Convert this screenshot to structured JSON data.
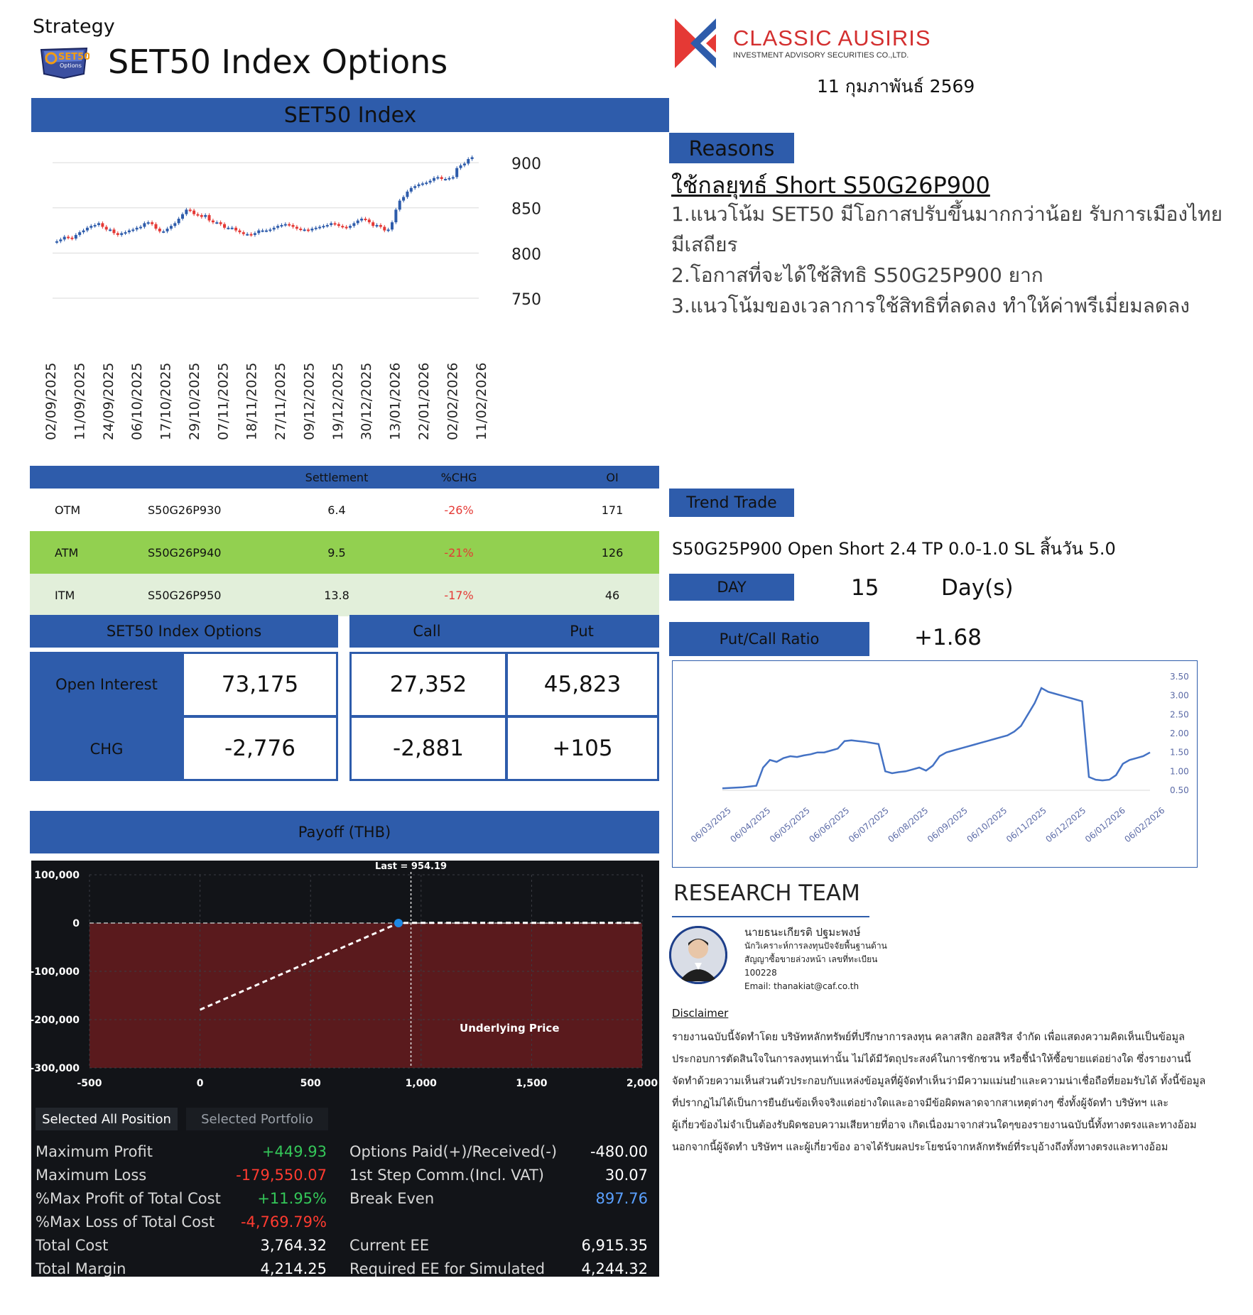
{
  "header": {
    "strategy_label": "Strategy",
    "badge_text": "SET50",
    "badge_sub": "Options",
    "title": "SET50 Index Options",
    "brand_name": "CLASSIC AUSIRIS",
    "brand_sub": "INVESTMENT ADVISORY SECURITIES CO.,LTD.",
    "date": "11 กุมภาพันธ์ 2569"
  },
  "index_chart_header": "SET50 Index",
  "chart_data": [
    {
      "type": "candlestick",
      "title": "SET50 Index",
      "x_ticks": [
        "02/09/2025",
        "11/09/2025",
        "24/09/2025",
        "06/10/2025",
        "17/10/2025",
        "29/10/2025",
        "07/11/2025",
        "18/11/2025",
        "27/11/2025",
        "09/12/2025",
        "19/12/2025",
        "30/12/2025",
        "13/01/2026",
        "22/01/2026",
        "02/02/2026",
        "11/02/2026"
      ],
      "y_ticks": [
        900,
        850,
        800,
        750
      ],
      "ylim": [
        750,
        915
      ],
      "grid": true,
      "up_color": "#2e5cab",
      "down_color": "#e53935",
      "close": [
        813,
        815,
        818,
        817,
        816,
        820,
        823,
        825,
        828,
        830,
        831,
        833,
        829,
        826,
        826,
        822,
        820,
        822,
        823,
        825,
        826,
        828,
        829,
        833,
        834,
        832,
        827,
        824,
        824,
        827,
        830,
        833,
        838,
        843,
        848,
        847,
        843,
        842,
        840,
        842,
        836,
        834,
        834,
        832,
        828,
        828,
        828,
        825,
        823,
        821,
        821,
        820,
        822,
        825,
        825,
        825,
        826,
        828,
        830,
        831,
        832,
        831,
        829,
        827,
        826,
        826,
        825,
        827,
        828,
        829,
        830,
        831,
        833,
        832,
        830,
        829,
        828,
        830,
        833,
        836,
        838,
        837,
        834,
        830,
        831,
        829,
        825,
        826,
        834,
        848,
        858,
        862,
        868,
        872,
        874,
        876,
        877,
        878,
        880,
        883,
        884,
        882,
        882,
        883,
        884,
        894,
        897,
        899,
        904,
        906
      ],
      "open": [
        812,
        813,
        815,
        818,
        817,
        816,
        820,
        823,
        825,
        828,
        830,
        831,
        833,
        829,
        826,
        826,
        822,
        820,
        822,
        823,
        825,
        826,
        828,
        829,
        833,
        834,
        832,
        827,
        824,
        824,
        827,
        830,
        833,
        838,
        843,
        848,
        847,
        843,
        842,
        840,
        842,
        836,
        834,
        834,
        832,
        828,
        828,
        828,
        825,
        823,
        821,
        821,
        820,
        822,
        825,
        825,
        825,
        826,
        828,
        830,
        831,
        832,
        831,
        829,
        827,
        826,
        826,
        825,
        827,
        828,
        829,
        830,
        831,
        833,
        832,
        830,
        829,
        828,
        830,
        833,
        836,
        838,
        837,
        834,
        830,
        831,
        829,
        825,
        826,
        834,
        848,
        858,
        862,
        868,
        872,
        874,
        876,
        877,
        878,
        880,
        883,
        884,
        882,
        882,
        883,
        884,
        894,
        897,
        899,
        904
      ]
    },
    {
      "type": "line",
      "title": "Put/Call Ratio",
      "x_ticks": [
        "06/03/2025",
        "06/04/2025",
        "06/05/2025",
        "06/06/2025",
        "06/07/2025",
        "06/08/2025",
        "06/09/2025",
        "06/10/2025",
        "06/11/2025",
        "06/12/2025",
        "06/01/2026",
        "06/02/2026"
      ],
      "y_ticks": [
        "3.50",
        "3.00",
        "2.50",
        "2.00",
        "1.50",
        "1.00",
        "0.50"
      ],
      "ylim": [
        0.5,
        3.5
      ],
      "color": "#4472c4",
      "values": [
        0.55,
        0.56,
        0.57,
        0.58,
        0.6,
        0.62,
        1.1,
        1.3,
        1.25,
        1.35,
        1.4,
        1.38,
        1.42,
        1.45,
        1.5,
        1.5,
        1.55,
        1.6,
        1.8,
        1.82,
        1.8,
        1.78,
        1.75,
        1.72,
        1.0,
        0.95,
        0.98,
        1.0,
        1.05,
        1.1,
        1.02,
        1.15,
        1.4,
        1.5,
        1.55,
        1.6,
        1.65,
        1.7,
        1.75,
        1.8,
        1.85,
        1.9,
        1.95,
        2.05,
        2.2,
        2.5,
        2.8,
        3.2,
        3.1,
        3.05,
        3.0,
        2.95,
        2.9,
        2.85,
        0.85,
        0.78,
        0.76,
        0.78,
        0.9,
        1.2,
        1.3,
        1.35,
        1.4,
        1.5
      ]
    },
    {
      "type": "line",
      "title": "Payoff (THB)",
      "xlabel": "Underlying Price",
      "x_ticks": [
        "-500",
        "0",
        "500",
        "1,000",
        "1,500",
        "2,000"
      ],
      "y_ticks": [
        "100,000",
        "0",
        "-100,000",
        "-200,000",
        "-300,000"
      ],
      "xlim": [
        -500,
        2000
      ],
      "ylim": [
        -300000,
        100000
      ],
      "marker_label": "Last = 954.19",
      "marker_x": 954.19,
      "x": [
        0,
        897.76,
        954.19,
        2000
      ],
      "y": [
        -179550,
        0,
        449.93,
        449.93
      ]
    }
  ],
  "reasons": {
    "header": "Reasons",
    "title": "ใช้กลยุทธ์ Short S50G26P900",
    "lines": [
      "1.แนวโน้ม SET50 มีโอกาสปรับขึ้นมากกว่าน้อย รับการเมืองไทยมีเสถียร",
      "2.โอกาสที่จะได้ใช้สิทธิ S50G25P900 ยาก",
      "3.แนวโน้มของเวลาการใช้สิทธิที่ลดลง ทำให้ค่าพรีเมี่ยมลดลง"
    ]
  },
  "options_table": {
    "headers": [
      "",
      "",
      "Settlement",
      "%CHG",
      "OI"
    ],
    "rows": [
      {
        "type": "OTM",
        "series": "S50G26P930",
        "settlement": "6.4",
        "chg": "-26%",
        "oi": "171",
        "bg": "#ffffff"
      },
      {
        "type": "ATM",
        "series": "S50G26P940",
        "settlement": "9.5",
        "chg": "-21%",
        "oi": "126",
        "bg": "#92d050"
      },
      {
        "type": "ITM",
        "series": "S50G26P950",
        "settlement": "13.8",
        "chg": "-17%",
        "oi": "46",
        "bg": "#e2efda"
      }
    ]
  },
  "trend": {
    "header": "Trend Trade",
    "text": "S50G25P900 Open Short 2.4 TP 0.0-1.0 SL สิ้นวัน 5.0",
    "day_label": "DAY",
    "day_value": "15",
    "day_unit": "Day(s)",
    "pcr_label": "Put/Call Ratio",
    "pcr_value": "+1.68"
  },
  "summary": {
    "header": "SET50 Index Options",
    "call_label": "Call",
    "put_label": "Put",
    "oi_label": "Open Interest",
    "chg_label": "CHG",
    "oi_total": "73,175",
    "chg_total": "-2,776",
    "oi_call": "27,352",
    "oi_put": "45,823",
    "chg_call": "-2,881",
    "chg_put": "+105"
  },
  "payoff": {
    "header": "Payoff (THB)",
    "tab_all": "Selected All Position",
    "tab_portfolio": "Selected Portfolio",
    "left_stats": [
      {
        "label": "Maximum Profit",
        "value": "+449.93",
        "color": "#34c759"
      },
      {
        "label": "Maximum Loss",
        "value": "-179,550.07",
        "color": "#ff3b30"
      },
      {
        "label": "%Max Profit of Total Cost",
        "value": "+11.95%",
        "color": "#34c759"
      },
      {
        "label": "%Max Loss of Total Cost",
        "value": "-4,769.79%",
        "color": "#ff3b30"
      },
      {
        "label": "Total Cost",
        "value": "3,764.32",
        "color": "#ffffff"
      },
      {
        "label": "Total Margin",
        "value": "4,214.25",
        "color": "#ffffff"
      }
    ],
    "right_stats": [
      {
        "label": "Options Paid(+)/Received(-)",
        "value": "-480.00",
        "color": "#ffffff"
      },
      {
        "label": "1st Step Comm.(Incl. VAT)",
        "value": "30.07",
        "color": "#ffffff"
      },
      {
        "label": "Break Even",
        "value": "897.76",
        "color": "#5aa0ff"
      },
      {
        "label": "",
        "value": "",
        "color": "#ffffff"
      },
      {
        "label": "Current EE",
        "value": "6,915.35",
        "color": "#ffffff"
      },
      {
        "label": "Required EE for Simulated",
        "value": "4,244.32",
        "color": "#ffffff"
      }
    ]
  },
  "research": {
    "title": "RESEARCH TEAM",
    "name": "นายธนะเกียรติ ปฐมะพงษ์",
    "role_line1": "นักวิเคราะห์การลงทุนปัจจัยพื้นฐานด้าน",
    "role_line2": "สัญญาซื้อขายล่วงหน้า เลขที่ทะเบียน",
    "license": "100228",
    "email": "Email: thanakiat@caf.co.th",
    "disclaimer_title": "Disclaimer",
    "disclaimer_lines": [
      "รายงานฉบับนี้จัดทำโดย บริษัทหลักทรัพย์ที่ปรึกษาการลงทุน คลาสสิก ออสสิริส จำกัด เพื่อแสดงความคิดเห็นเป็นข้อมูล",
      "ประกอบการตัดสินใจในการลงทุนเท่านั้น ไม่ได้มีวัตถุประสงค์ในการชักชวน หรือชี้นำให้ซื้อขายแต่อย่างใด ซึ่งรายงานนี้",
      "จัดทำด้วยความเห็นส่วนตัวประกอบกับแหล่งข้อมูลที่ผู้จัดทำเห็นว่ามีความแม่นยำและความน่าเชื่อถือที่ยอมรับได้ ทั้งนี้ข้อมูล",
      "ที่ปรากฏไม่ได้เป็นการยืนยันข้อเท็จจริงแต่อย่างใดและอาจมีข้อผิดพลาดจากสาเหตุต่างๆ ซึ่งทั้งผู้จัดทำ บริษัทฯ และ",
      "ผู้เกี่ยวข้องไม่จำเป็นต้องรับผิดชอบความเสียหายที่อาจ เกิดเนื่องมาจากส่วนใดๆของรายงานฉบับนี้ทั้งทางตรงและทางอ้อม",
      "นอกจากนี้ผู้จัดทำ บริษัทฯ และผู้เกี่ยวข้อง อาจได้รับผลประโยชน์จากหลักทรัพย์ที่ระบุอ้างถึงทั้งทางตรงและทางอ้อม"
    ]
  }
}
